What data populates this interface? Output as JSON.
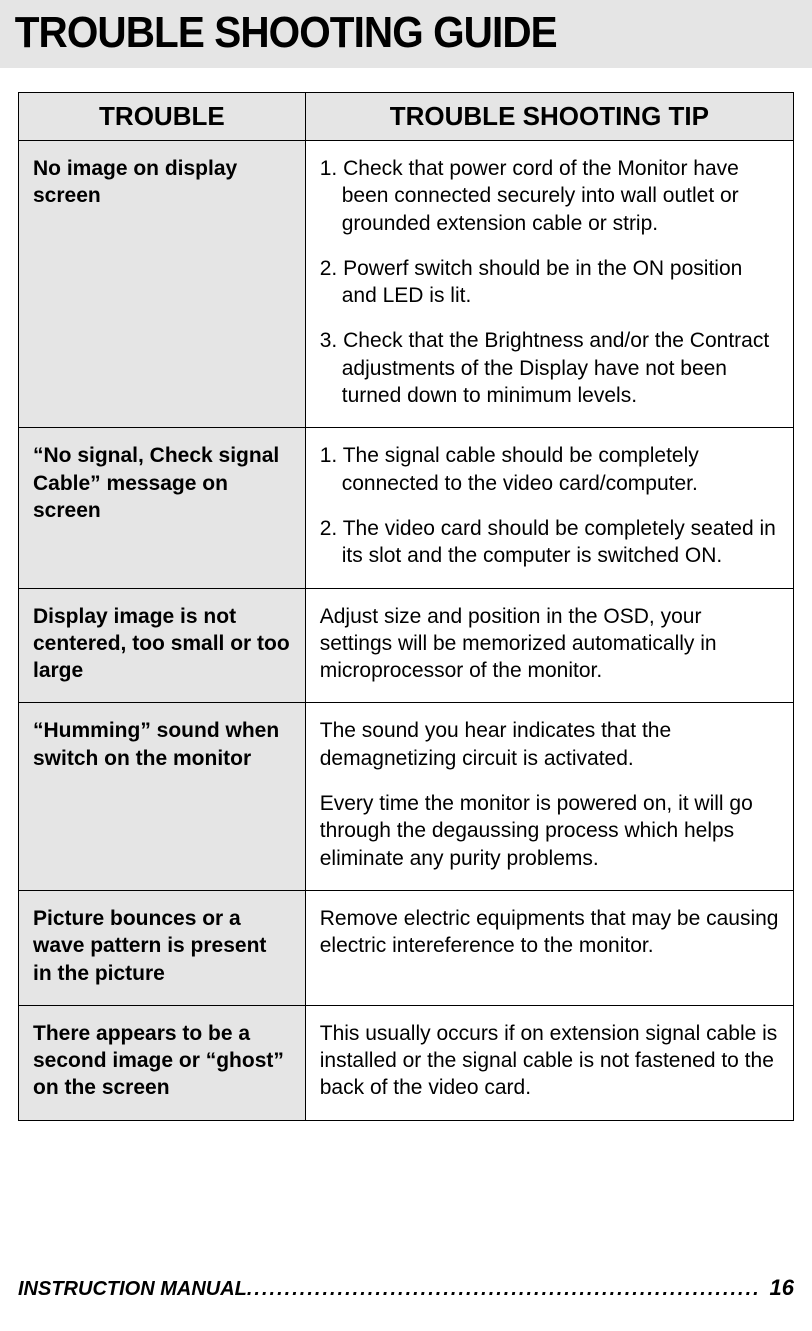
{
  "title": "TROUBLE SHOOTING GUIDE",
  "columns": {
    "trouble": "TROUBLE",
    "tip": "TROUBLE SHOOTING TIP"
  },
  "rows": [
    {
      "trouble": "No image on display screen",
      "tips": [
        "1. Check that power cord of the Monitor have been connected securely into wall outlet or grounded extension cable or strip.",
        "2. Powerf switch should be in the ON position and LED is lit.",
        "3. Check that the Brightness and/or the Contract adjustments of the Display have not been turned down to minimum levels."
      ],
      "tip_type": "list"
    },
    {
      "trouble": "“No signal, Check signal Cable” message on screen",
      "tips": [
        "1. The signal cable should be completely connected to the video card/computer.",
        "2. The video card should be completely seated in its slot and the computer is switched ON."
      ],
      "tip_type": "list"
    },
    {
      "trouble": "Display image is not centered, too small or too large",
      "tips": [
        "Adjust size and position in the OSD, your settings will be memorized automatically in microprocessor of the monitor."
      ],
      "tip_type": "para"
    },
    {
      "trouble": "“Humming” sound when switch on the monitor",
      "tips": [
        "The sound you hear indicates that the demagnetizing circuit is activated.",
        "Every time the monitor is powered on, it will go through the degaussing process which helps eliminate any purity problems."
      ],
      "tip_type": "para"
    },
    {
      "trouble": "Picture bounces or a wave pattern is present in the picture",
      "tips": [
        "Remove electric equipments that may be causing electric intereference to the monitor."
      ],
      "tip_type": "para"
    },
    {
      "trouble": "There appears to be a second image or “ghost” on the screen",
      "tips": [
        "This usually occurs if on extension signal cable is installed or the signal cable is not fastened to the back of the video card."
      ],
      "tip_type": "para"
    }
  ],
  "footer": {
    "label": "INSTRUCTION  MANUAL",
    "dots": ".........................................................................................................",
    "page": "16"
  },
  "colors": {
    "header_bg": "#e5e5e5",
    "border": "#000000",
    "page_bg": "#ffffff"
  },
  "typography": {
    "title_fontsize": 44,
    "th_fontsize": 26,
    "td_fontsize": 21,
    "footer_fontsize": 20
  }
}
